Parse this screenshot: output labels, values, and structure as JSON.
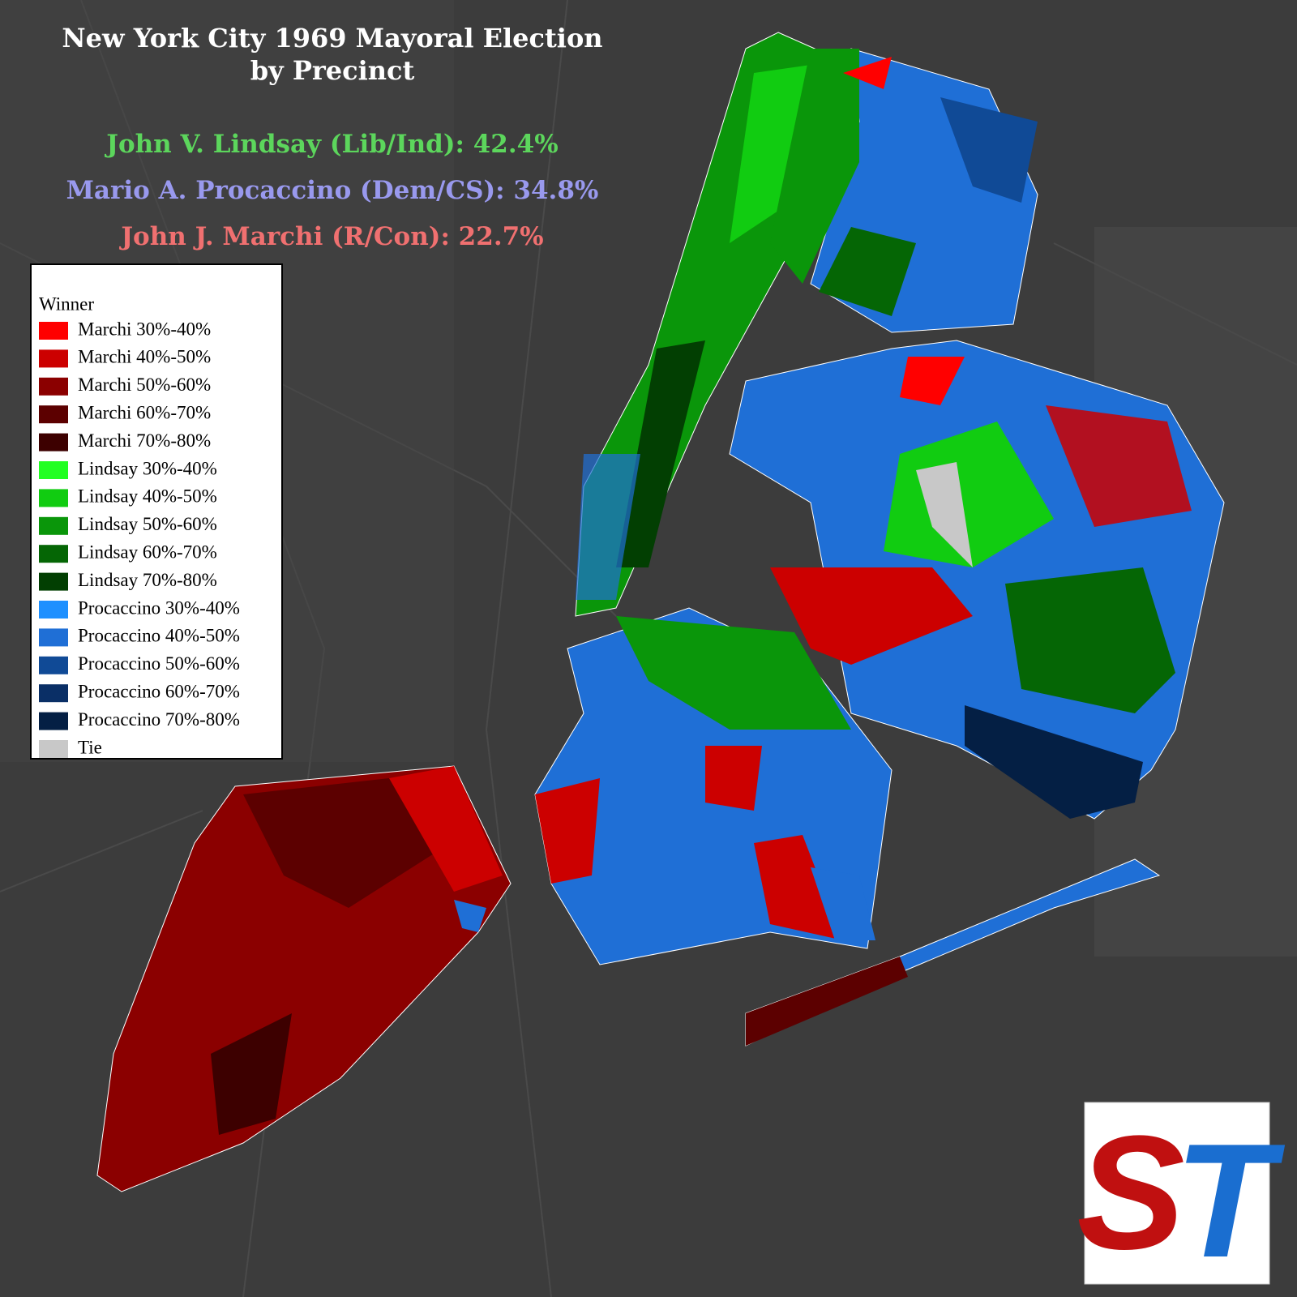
{
  "header": {
    "title": [
      "New York City 1969 Mayoral Election",
      "by Precinct"
    ],
    "results": [
      {
        "text": "John V. Lindsay (Lib/Ind): 42.4%",
        "color": "#5cd65c"
      },
      {
        "text": "Mario A. Procaccino (Dem/CS): 34.8%",
        "color": "#9999ee"
      },
      {
        "text": "John J. Marchi (R/Con): 22.7%",
        "color": "#f07070"
      }
    ]
  },
  "legend": {
    "title": "Winner",
    "items": [
      {
        "label": "Marchi 30%-40%",
        "color": "#ff0000"
      },
      {
        "label": "Marchi 40%-50%",
        "color": "#cc0000"
      },
      {
        "label": "Marchi 50%-60%",
        "color": "#8b0000"
      },
      {
        "label": "Marchi 60%-70%",
        "color": "#5c0000"
      },
      {
        "label": "Marchi 70%-80%",
        "color": "#3d0000"
      },
      {
        "label": "Lindsay 30%-40%",
        "color": "#22ff22"
      },
      {
        "label": "Lindsay 40%-50%",
        "color": "#11cc11"
      },
      {
        "label": "Lindsay 50%-60%",
        "color": "#0a960a"
      },
      {
        "label": "Lindsay 60%-70%",
        "color": "#056605"
      },
      {
        "label": "Lindsay 70%-80%",
        "color": "#023f02"
      },
      {
        "label": "Procaccino 30%-40%",
        "color": "#1e90ff"
      },
      {
        "label": "Procaccino 40%-50%",
        "color": "#1f6fd6"
      },
      {
        "label": "Procaccino 50%-60%",
        "color": "#104a96"
      },
      {
        "label": "Procaccino 60%-70%",
        "color": "#0a2f66"
      },
      {
        "label": "Procaccino 70%-80%",
        "color": "#041f44"
      },
      {
        "label": "Tie",
        "color": "#c8c8c8"
      }
    ]
  },
  "logo": {
    "left": "S",
    "right": "T"
  }
}
